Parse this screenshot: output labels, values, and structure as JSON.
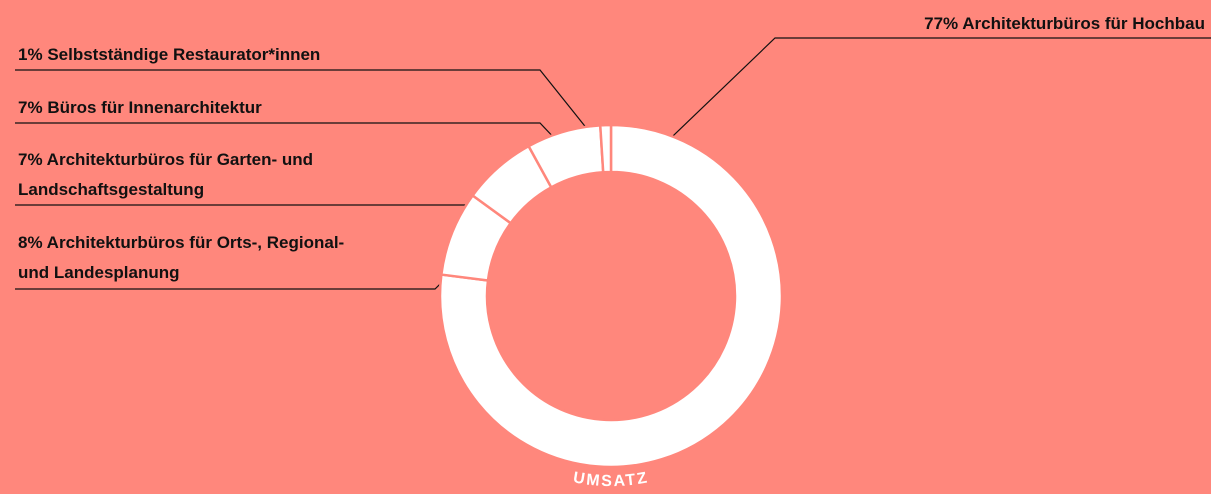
{
  "chart_data": {
    "type": "donut",
    "title": "UMSATZ",
    "categories": [
      "Architekturbüros für Hochbau",
      "Architekturbüros für Orts-, Regional- und Landesplanung",
      "Architekturbüros für Garten- und Landschaftsgestaltung",
      "Büros für Innenarchitektur",
      "Selbstständige Restaurator*innen"
    ],
    "values": [
      77,
      8,
      7,
      7,
      1
    ],
    "value_labels": [
      "77%",
      "8%",
      "7%",
      "7%",
      "1%"
    ],
    "color": "#ffffff"
  }
}
